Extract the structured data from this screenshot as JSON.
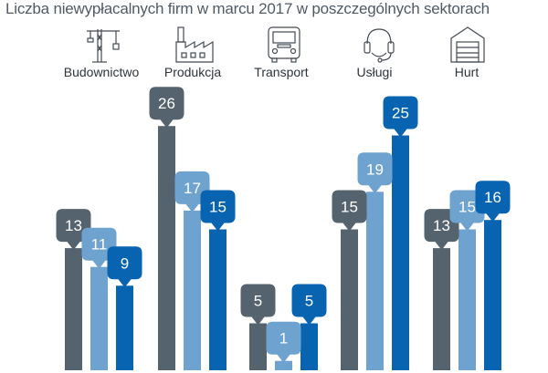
{
  "title": "Liczba niewypłacalnych firm w marcu 2017 w poszczególnych sektorach",
  "chart_data": {
    "type": "bar",
    "title": "Liczba niewypłacalnych firm w marcu 2017 w poszczególnych sektorach",
    "categories": [
      "Budownictwo",
      "Produkcja",
      "Transport",
      "Usługi",
      "Hurt"
    ],
    "series": [
      {
        "values": [
          13,
          26,
          5,
          15,
          13
        ],
        "color": "#55636f"
      },
      {
        "values": [
          11,
          17,
          1,
          19,
          15
        ],
        "color": "#6fa3cf"
      },
      {
        "values": [
          9,
          15,
          5,
          25,
          16
        ],
        "color": "#0863b0"
      }
    ],
    "icons": [
      "crane-icon",
      "factory-icon",
      "truck-icon",
      "headset-icon",
      "garage-icon"
    ],
    "data_labels": "callout-above-bar",
    "ylim": [
      0,
      26
    ],
    "grid": false,
    "legend": "none"
  }
}
